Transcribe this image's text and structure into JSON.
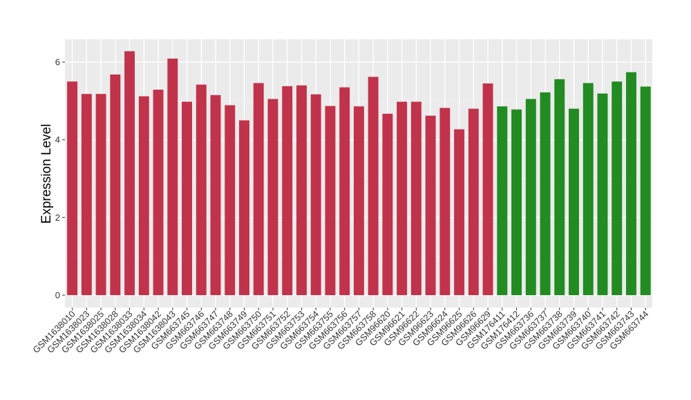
{
  "chart_data": {
    "type": "bar",
    "title": "",
    "xlabel": "",
    "ylabel": "Expression Level",
    "ylim": [
      0,
      6.6
    ],
    "yticks": [
      0,
      2,
      4,
      6
    ],
    "grid": true,
    "legend": "none",
    "background_color": "#ebebeb",
    "grid_color": "#ffffff",
    "categories": [
      "GSM1638010",
      "GSM1638023",
      "GSM1638025",
      "GSM1638028",
      "GSM1638033",
      "GSM1638034",
      "GSM1638042",
      "GSM1638043",
      "GSM663745",
      "GSM663746",
      "GSM663747",
      "GSM663748",
      "GSM663749",
      "GSM663750",
      "GSM663751",
      "GSM663752",
      "GSM663753",
      "GSM663754",
      "GSM663755",
      "GSM663756",
      "GSM663757",
      "GSM663758",
      "GSM96620",
      "GSM96621",
      "GSM96622",
      "GSM96623",
      "GSM96624",
      "GSM96625",
      "GSM96626",
      "GSM96629",
      "GSM176411",
      "GSM176412",
      "GSM663736",
      "GSM663737",
      "GSM663738",
      "GSM663739",
      "GSM663740",
      "GSM663741",
      "GSM663742",
      "GSM663743",
      "GSM663744"
    ],
    "values": [
      5.5,
      5.18,
      5.18,
      5.68,
      6.28,
      5.12,
      5.29,
      6.09,
      4.98,
      5.42,
      5.15,
      4.89,
      4.5,
      5.46,
      5.05,
      5.38,
      5.4,
      5.17,
      4.87,
      5.35,
      4.86,
      5.62,
      4.67,
      4.98,
      4.98,
      4.62,
      4.82,
      4.27,
      4.8,
      5.45,
      4.86,
      4.78,
      5.05,
      5.22,
      5.56,
      4.8,
      5.46,
      5.19,
      5.5,
      5.74,
      5.37
    ],
    "groups": [
      {
        "color": "#c1334b",
        "count": 30
      },
      {
        "color": "#228b22",
        "count": 11
      }
    ]
  }
}
